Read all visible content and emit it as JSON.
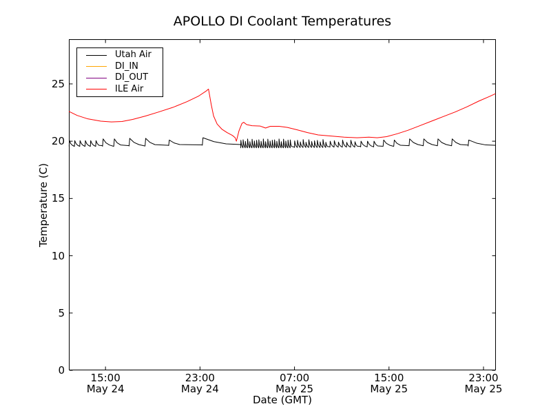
{
  "chart_data": {
    "type": "line",
    "title": "APOLLO DI Coolant Temperatures",
    "xlabel": "Date (GMT)",
    "ylabel": "Temperature (C)",
    "xlim": [
      -0.1,
      36.05
    ],
    "ylim": [
      0,
      28.9
    ],
    "grid": false,
    "legend_position": "upper-left",
    "x_unit_note": "hours along axis; tick labels show GMT time and date",
    "yticks": [
      {
        "value": 0,
        "label": "0"
      },
      {
        "value": 5,
        "label": "5"
      },
      {
        "value": 10,
        "label": "10"
      },
      {
        "value": 15,
        "label": "15"
      },
      {
        "value": 20,
        "label": "20"
      },
      {
        "value": 25,
        "label": "25"
      }
    ],
    "xticks": [
      {
        "t": 3,
        "time": "15:00",
        "date": "May 24"
      },
      {
        "t": 11,
        "time": "23:00",
        "date": "May 24"
      },
      {
        "t": 19,
        "time": "07:00",
        "date": "May 25"
      },
      {
        "t": 27,
        "time": "15:00",
        "date": "May 25"
      },
      {
        "t": 35,
        "time": "23:00",
        "date": "May 25"
      }
    ],
    "series": [
      {
        "name": "Utah Air",
        "color": "#000000",
        "style": "thermostat sawtooth around 19.4-20.3 C",
        "sawtooth_segments": [
          {
            "t0": -0.08,
            "t1": 2.75,
            "period": 0.45,
            "trough": 19.55,
            "peak": 20.05
          },
          {
            "t0": 2.75,
            "t1": 5.0,
            "period": 0.95,
            "trough": 19.55,
            "peak": 20.2
          },
          {
            "t0": 5.0,
            "t1": 8.35,
            "period": 1.35,
            "trough": 19.58,
            "peak": 20.25
          },
          {
            "t0": 8.35,
            "t1": 11.2,
            "period": 1.5,
            "trough": 19.62,
            "peak": 20.1
          },
          {
            "t0": 11.2,
            "t1": 14.45,
            "period": 3.25,
            "trough": 19.65,
            "peak": 20.3
          },
          {
            "t0": 14.45,
            "t1": 19.0,
            "period": 0.19,
            "trough": 19.42,
            "peak": 20.08,
            "jitter": 0.12
          },
          {
            "t0": 19.0,
            "t1": 22.0,
            "period": 0.24,
            "trough": 19.45,
            "peak": 20.03,
            "jitter": 0.12
          },
          {
            "t0": 22.0,
            "t1": 24.6,
            "period": 0.35,
            "trough": 19.48,
            "peak": 20.0,
            "jitter": 0.1
          },
          {
            "t0": 24.6,
            "t1": 26.5,
            "period": 0.55,
            "trough": 19.5,
            "peak": 20.0
          },
          {
            "t0": 26.5,
            "t1": 28.7,
            "period": 0.9,
            "trough": 19.55,
            "peak": 20.1
          },
          {
            "t0": 28.7,
            "t1": 33.7,
            "period": 1.2,
            "trough": 19.6,
            "peak": 20.2
          },
          {
            "t0": 33.7,
            "t1": 36.05,
            "period": 2.4,
            "trough": 19.58,
            "peak": 20.1
          }
        ]
      },
      {
        "name": "DI_IN",
        "color": "#ffa500",
        "points": []
      },
      {
        "name": "DI_OUT",
        "color": "#800080",
        "points": []
      },
      {
        "name": "ILE Air",
        "color": "#ff0000",
        "points": [
          [
            -0.1,
            22.6
          ],
          [
            0.6,
            22.25
          ],
          [
            1.5,
            21.95
          ],
          [
            2.6,
            21.75
          ],
          [
            3.5,
            21.68
          ],
          [
            4.4,
            21.72
          ],
          [
            5.3,
            21.9
          ],
          [
            6.4,
            22.2
          ],
          [
            7.5,
            22.55
          ],
          [
            8.7,
            22.95
          ],
          [
            9.9,
            23.45
          ],
          [
            10.9,
            23.95
          ],
          [
            11.55,
            24.4
          ],
          [
            11.72,
            24.55
          ],
          [
            11.95,
            23.2
          ],
          [
            12.15,
            22.2
          ],
          [
            12.45,
            21.5
          ],
          [
            12.85,
            21.05
          ],
          [
            13.3,
            20.75
          ],
          [
            13.75,
            20.5
          ],
          [
            13.98,
            20.3
          ],
          [
            14.08,
            20.0
          ],
          [
            14.3,
            20.9
          ],
          [
            14.55,
            21.55
          ],
          [
            14.7,
            21.65
          ],
          [
            14.95,
            21.45
          ],
          [
            15.4,
            21.35
          ],
          [
            16.1,
            21.32
          ],
          [
            16.55,
            21.15
          ],
          [
            16.95,
            21.3
          ],
          [
            17.7,
            21.3
          ],
          [
            18.4,
            21.2
          ],
          [
            19.2,
            21.0
          ],
          [
            20.1,
            20.75
          ],
          [
            21.0,
            20.55
          ],
          [
            22.1,
            20.45
          ],
          [
            23.2,
            20.35
          ],
          [
            24.3,
            20.3
          ],
          [
            25.3,
            20.35
          ],
          [
            26.0,
            20.3
          ],
          [
            26.8,
            20.4
          ],
          [
            27.7,
            20.65
          ],
          [
            28.6,
            20.95
          ],
          [
            29.6,
            21.35
          ],
          [
            30.6,
            21.75
          ],
          [
            31.6,
            22.15
          ],
          [
            32.6,
            22.55
          ],
          [
            33.6,
            23.0
          ],
          [
            34.6,
            23.5
          ],
          [
            35.5,
            23.9
          ],
          [
            36.02,
            24.15
          ]
        ]
      }
    ]
  }
}
